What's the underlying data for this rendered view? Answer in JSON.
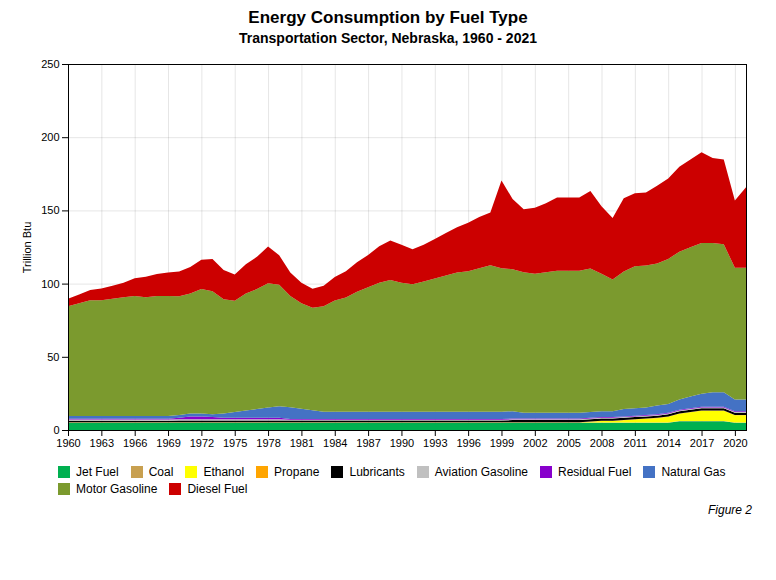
{
  "chart_data": {
    "type": "area",
    "stacked": true,
    "title": "Energy Consumption by Fuel Type",
    "subtitle": "Transportation Sector, Nebraska, 1960 - 2021",
    "ylabel": "Trillion Btu",
    "annotation": "Figure 2",
    "grid": true,
    "legend": "bottom",
    "x": [
      1960,
      1961,
      1962,
      1963,
      1964,
      1965,
      1966,
      1967,
      1968,
      1969,
      1970,
      1971,
      1972,
      1973,
      1974,
      1975,
      1976,
      1977,
      1978,
      1979,
      1980,
      1981,
      1982,
      1983,
      1984,
      1985,
      1986,
      1987,
      1988,
      1989,
      1990,
      1991,
      1992,
      1993,
      1994,
      1995,
      1996,
      1997,
      1998,
      1999,
      2000,
      2001,
      2002,
      2003,
      2004,
      2005,
      2006,
      2007,
      2008,
      2009,
      2010,
      2011,
      2012,
      2013,
      2014,
      2015,
      2016,
      2017,
      2018,
      2019,
      2020,
      2021
    ],
    "xlim": [
      1960,
      2021
    ],
    "xticks": [
      1960,
      1963,
      1966,
      1969,
      1972,
      1975,
      1978,
      1981,
      1984,
      1987,
      1990,
      1993,
      1996,
      1999,
      2002,
      2005,
      2008,
      2011,
      2014,
      2017,
      2020
    ],
    "ylim": [
      0,
      250
    ],
    "yticks": [
      0,
      50,
      100,
      150,
      200,
      250
    ],
    "series": [
      {
        "name": "Jet Fuel",
        "color": "#00b050",
        "values": [
          5,
          5,
          5,
          5,
          5,
          5,
          5,
          5,
          5,
          5,
          5,
          5,
          5,
          5,
          5,
          5,
          5,
          5,
          5,
          5,
          5,
          5,
          5,
          5,
          5,
          5,
          5,
          5,
          5,
          5,
          5,
          5,
          5,
          5,
          5,
          5,
          5,
          5,
          5,
          5,
          5,
          5,
          5,
          5,
          5,
          5,
          5,
          5,
          5,
          5,
          5,
          5,
          5,
          5,
          5,
          6,
          6,
          6,
          6,
          6,
          5,
          5
        ]
      },
      {
        "name": "Coal",
        "color": "#c8a050",
        "values": [
          0.1,
          0.1,
          0.1,
          0.1,
          0.1,
          0.1,
          0.1,
          0.1,
          0.1,
          0.1,
          0.1,
          0.1,
          0.1,
          0.1,
          0.1,
          0.1,
          0.1,
          0.1,
          0.1,
          0.1,
          0.1,
          0.1,
          0.1,
          0.1,
          0.1,
          0.1,
          0.1,
          0.1,
          0.1,
          0.1,
          0.1,
          0.1,
          0.1,
          0.1,
          0.1,
          0.1,
          0.1,
          0.1,
          0.1,
          0.1,
          0.1,
          0.1,
          0.1,
          0.1,
          0.1,
          0.1,
          0.1,
          0.1,
          0.1,
          0.1,
          0.1,
          0.1,
          0.1,
          0.1,
          0.1,
          0.1,
          0.1,
          0.1,
          0.1,
          0.1,
          0.1,
          0.1
        ]
      },
      {
        "name": "Ethanol",
        "color": "#ffff00",
        "values": [
          0,
          0,
          0,
          0,
          0,
          0,
          0,
          0,
          0,
          0,
          0,
          0,
          0,
          0,
          0,
          0,
          0,
          0,
          0,
          0,
          0,
          0,
          0,
          0,
          0,
          0,
          0,
          0,
          0,
          0,
          0,
          0,
          0,
          0,
          0,
          0,
          0,
          0,
          0,
          0,
          0,
          0,
          0,
          0,
          0,
          0,
          0,
          0.5,
          1,
          1,
          1.5,
          2,
          2.5,
          3,
          4,
          5,
          6,
          7,
          7,
          7,
          5,
          5
        ]
      },
      {
        "name": "Propane",
        "color": "#ffa500",
        "values": [
          0.2,
          0.2,
          0.2,
          0.2,
          0.2,
          0.2,
          0.2,
          0.2,
          0.2,
          0.2,
          0.2,
          0.2,
          0.2,
          0.2,
          0.2,
          0.2,
          0.2,
          0.2,
          0.2,
          0.2,
          0.2,
          0.2,
          0.2,
          0.2,
          0.2,
          0.2,
          0.2,
          0.2,
          0.2,
          0.2,
          0.2,
          0.2,
          0.2,
          0.2,
          0.2,
          0.2,
          0.2,
          0.2,
          0.2,
          0.2,
          0.2,
          0.2,
          0.2,
          0.2,
          0.2,
          0.2,
          0.2,
          0.2,
          0.2,
          0.2,
          0.2,
          0.2,
          0.2,
          0.2,
          0.2,
          0.2,
          0.2,
          0.2,
          0.2,
          0.2,
          0.2,
          0.2
        ]
      },
      {
        "name": "Lubricants",
        "color": "#000000",
        "values": [
          1,
          1,
          1,
          1,
          1,
          1,
          1,
          1,
          1,
          1,
          1.2,
          1.2,
          1.2,
          1.2,
          1.2,
          1.2,
          1.2,
          1.2,
          1.2,
          1.2,
          1.2,
          1.2,
          1.2,
          1.2,
          1.2,
          1.2,
          1.2,
          1.2,
          1.2,
          1.2,
          1.2,
          1.2,
          1.2,
          1.2,
          1.2,
          1.2,
          1.2,
          1.2,
          1.2,
          1.2,
          1.5,
          1.5,
          1.5,
          1.5,
          1.5,
          1.5,
          1.5,
          1.5,
          1.5,
          1.5,
          1.5,
          1.5,
          1.5,
          1.5,
          1.5,
          1.5,
          1.5,
          1.5,
          1.5,
          1.5,
          1.5,
          1.5
        ]
      },
      {
        "name": "Aviation Gasoline",
        "color": "#c0c0c0",
        "values": [
          0.8,
          0.8,
          0.8,
          0.8,
          0.8,
          0.8,
          0.8,
          0.8,
          0.8,
          0.8,
          0.8,
          0.8,
          0.8,
          0.8,
          0.8,
          0.8,
          0.8,
          0.8,
          0.8,
          0.8,
          0.5,
          0.5,
          0.5,
          0.5,
          0.5,
          0.5,
          0.5,
          0.5,
          0.5,
          0.5,
          0.5,
          0.5,
          0.5,
          0.5,
          0.5,
          0.5,
          0.5,
          0.5,
          0.5,
          0.5,
          0.5,
          0.5,
          0.5,
          0.5,
          0.5,
          0.5,
          0.5,
          0.5,
          0.5,
          0.5,
          0.5,
          0.5,
          0.5,
          0.5,
          0.5,
          0.5,
          0.5,
          0.5,
          0.5,
          0.5,
          0.5,
          0.5
        ]
      },
      {
        "name": "Residual Fuel",
        "color": "#8800cc",
        "values": [
          0.5,
          0.5,
          0.5,
          0.5,
          0.5,
          0.5,
          0.5,
          0.5,
          0.5,
          0.5,
          1,
          2,
          2,
          1.5,
          1,
          1,
          1,
          1,
          1,
          1,
          0.5,
          0.5,
          0.5,
          0.5,
          0.5,
          0.5,
          0.5,
          0.5,
          0.5,
          0.5,
          0.5,
          0.5,
          0.5,
          0.5,
          0.5,
          0.5,
          0.5,
          0.5,
          0.5,
          0.5,
          0.5,
          0.5,
          0.5,
          0.5,
          0.5,
          0.5,
          0.5,
          0.5,
          0.5,
          0.5,
          0.5,
          0.5,
          0.5,
          0.5,
          0.5,
          0.5,
          0.5,
          0.5,
          0.5,
          0.5,
          0.5,
          0.5
        ]
      },
      {
        "name": "Natural Gas",
        "color": "#4472c4",
        "values": [
          2,
          2,
          2,
          2,
          2,
          2,
          2,
          2,
          2,
          2,
          2,
          2,
          2,
          2,
          3,
          4,
          5,
          6,
          7,
          8,
          8,
          7,
          6,
          5,
          5,
          5,
          5,
          5,
          5,
          5,
          5,
          5,
          5,
          5,
          5,
          5,
          5,
          5,
          5,
          5,
          5,
          4,
          4,
          4,
          4,
          4,
          4,
          4,
          4,
          4,
          5,
          5,
          5,
          6,
          6,
          7,
          8,
          9,
          10,
          10,
          8,
          8
        ]
      },
      {
        "name": "Motor Gasoline",
        "color": "#7b9a2e",
        "values": [
          75,
          77,
          79,
          79,
          80,
          81,
          82,
          81,
          82,
          82,
          81,
          82,
          85,
          84,
          78,
          76,
          80,
          82,
          85,
          83,
          76,
          72,
          70,
          72,
          76,
          78,
          82,
          85,
          88,
          90,
          88,
          87,
          89,
          91,
          93,
          95,
          96,
          98,
          100,
          98,
          97,
          96,
          95,
          96,
          97,
          97,
          97,
          98,
          94,
          90,
          94,
          97,
          97,
          97,
          99,
          101,
          102,
          103,
          102,
          101,
          90,
          90
        ]
      },
      {
        "name": "Diesel Fuel",
        "color": "#cc0000",
        "values": [
          5,
          6,
          7,
          8,
          9,
          10,
          12,
          14,
          15,
          16,
          17,
          18,
          20,
          22,
          20,
          18,
          20,
          22,
          25,
          20,
          16,
          14,
          13,
          14,
          16,
          18,
          20,
          22,
          25,
          27,
          26,
          24,
          25,
          27,
          29,
          31,
          33,
          35,
          36,
          60,
          48,
          43,
          45,
          47,
          50,
          50,
          50,
          53,
          46,
          42,
          50,
          50,
          50,
          53,
          55,
          58,
          60,
          62,
          58,
          58,
          46,
          55
        ]
      }
    ]
  }
}
